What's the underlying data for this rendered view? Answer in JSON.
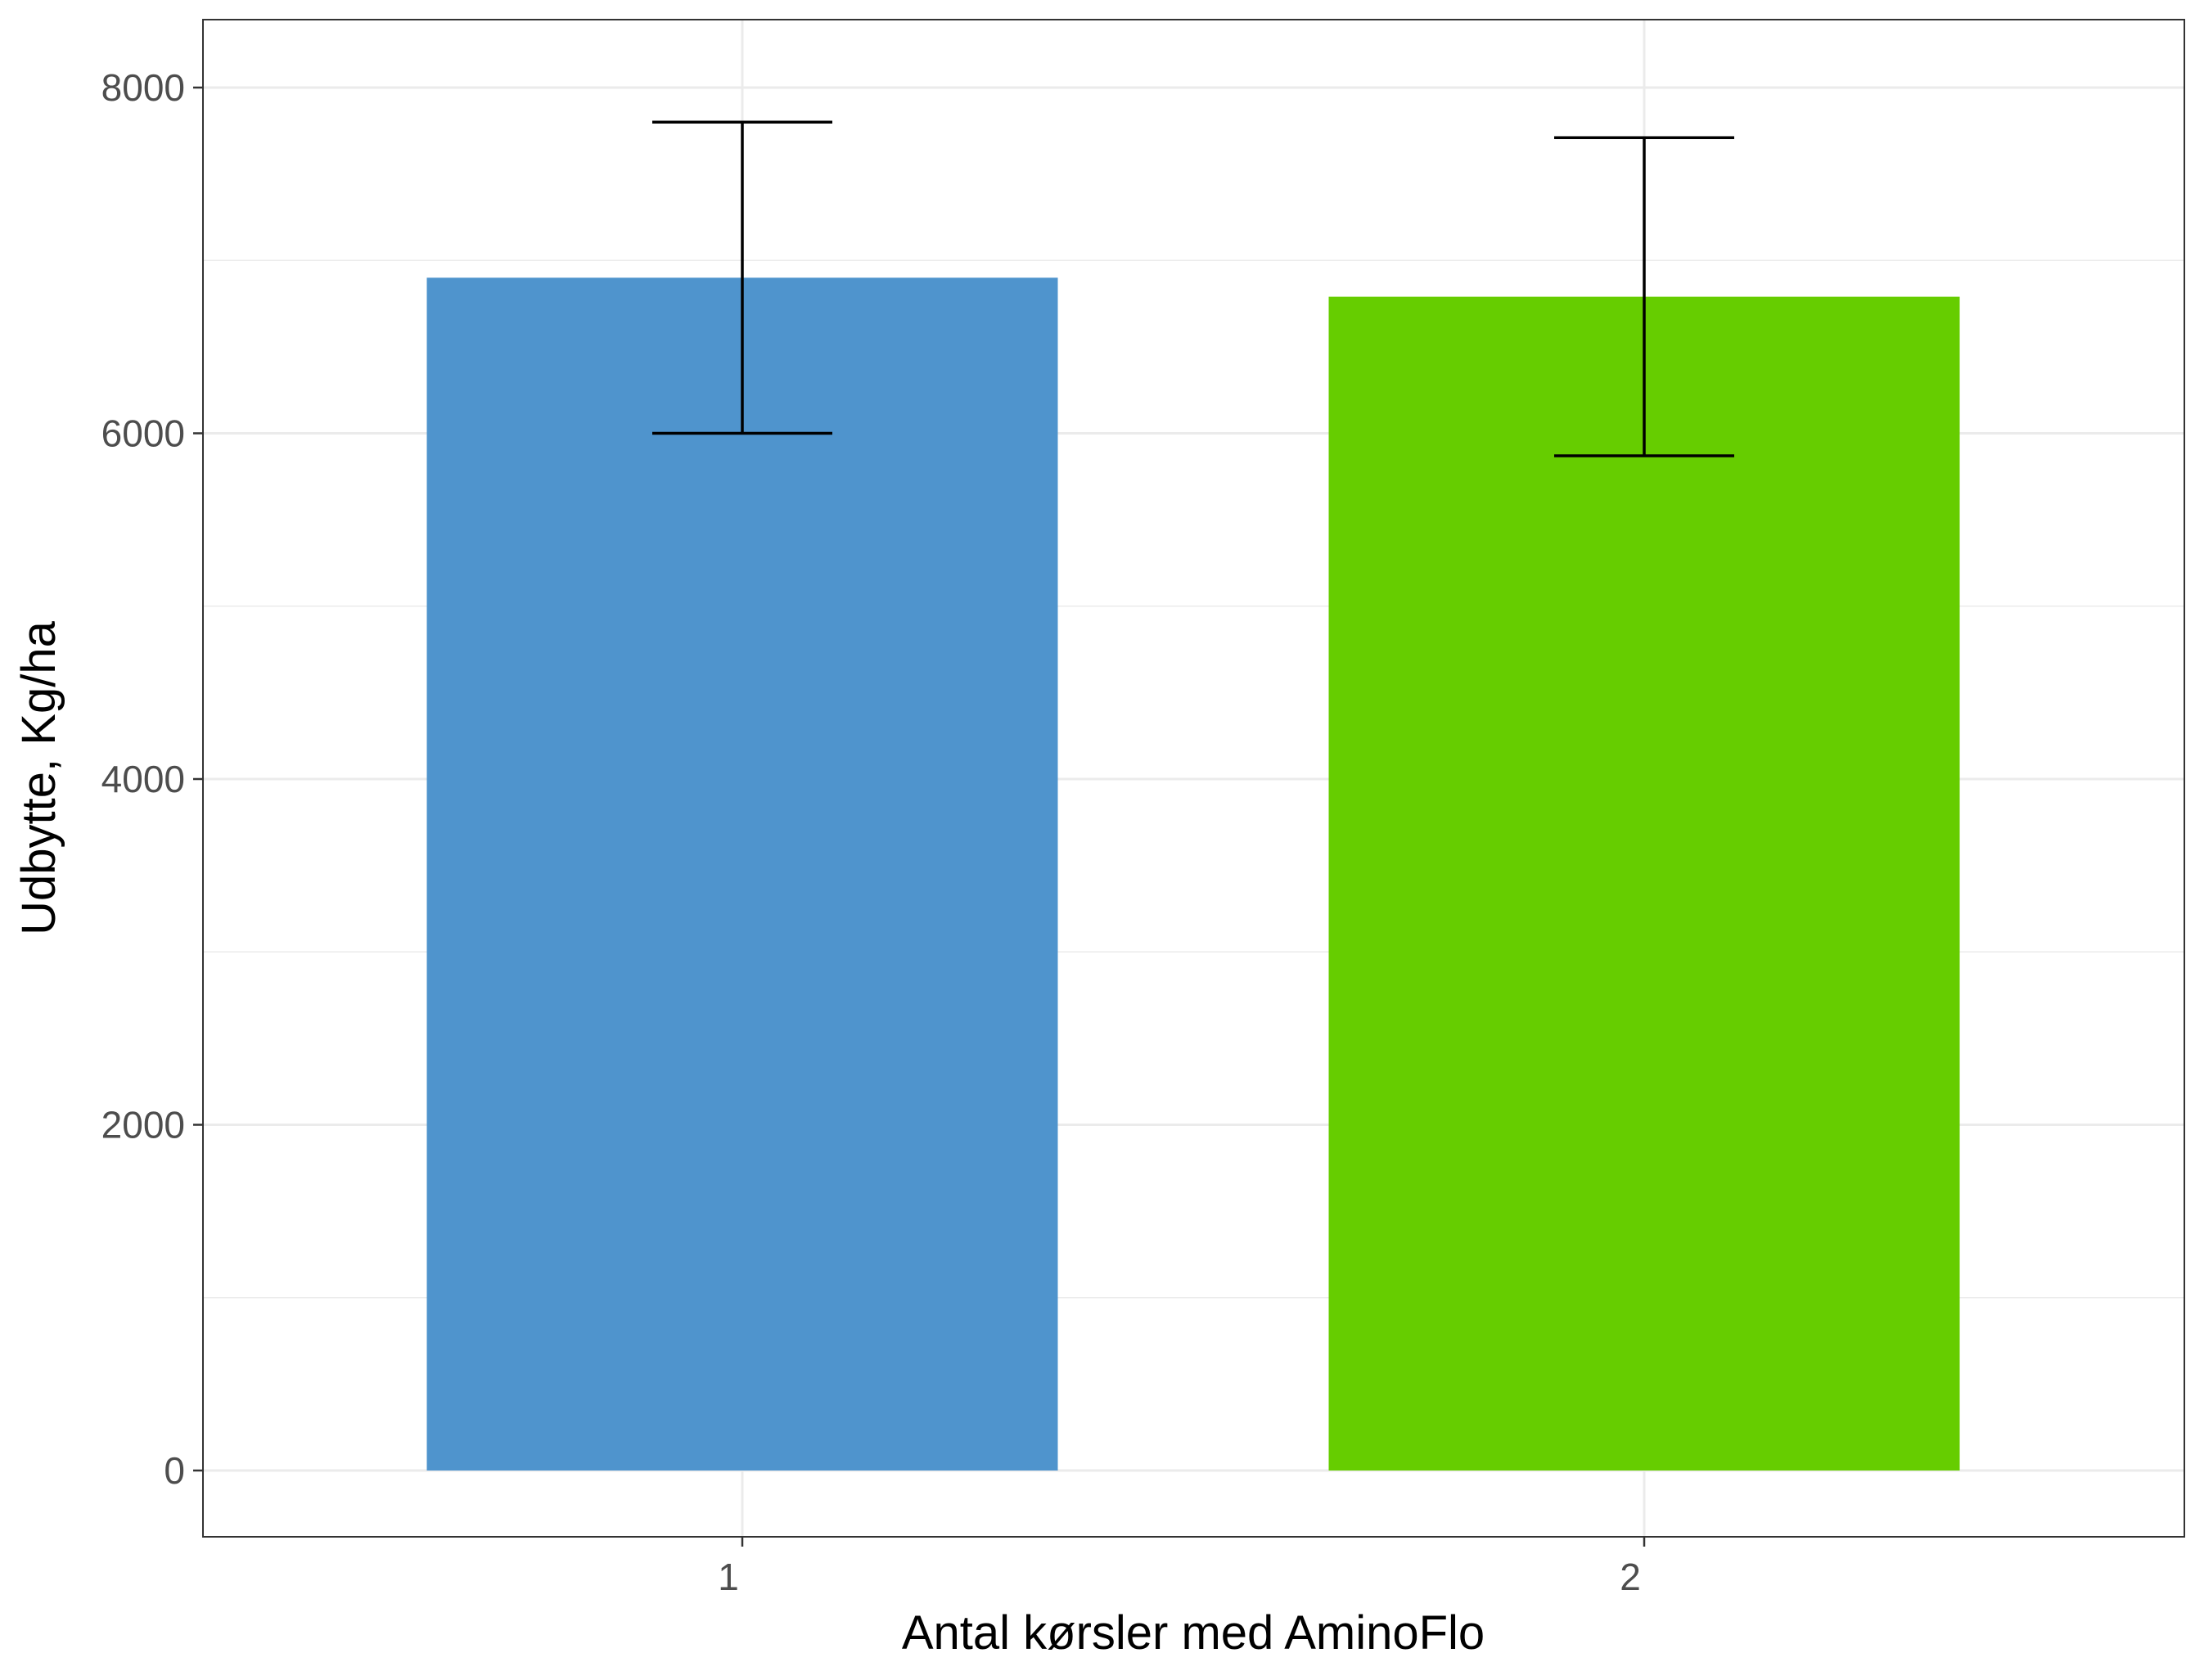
{
  "chart_data": {
    "type": "bar",
    "xlabel": "Antal kørsler med AminoFlo",
    "ylabel": "Udbytte, Kg/ha",
    "categories": [
      "1",
      "2"
    ],
    "values": [
      6900,
      6790
    ],
    "error_upper": [
      7800,
      7710
    ],
    "error_lower": [
      6000,
      5870
    ],
    "colors": [
      "#4f94cd",
      "#66cd00"
    ],
    "ylim": [
      -400,
      8400
    ],
    "yticks": [
      0,
      2000,
      4000,
      6000,
      8000
    ],
    "ytick_labels": [
      "0",
      "2000",
      "4000",
      "6000",
      "8000"
    ],
    "grid": true,
    "legend": "none"
  }
}
